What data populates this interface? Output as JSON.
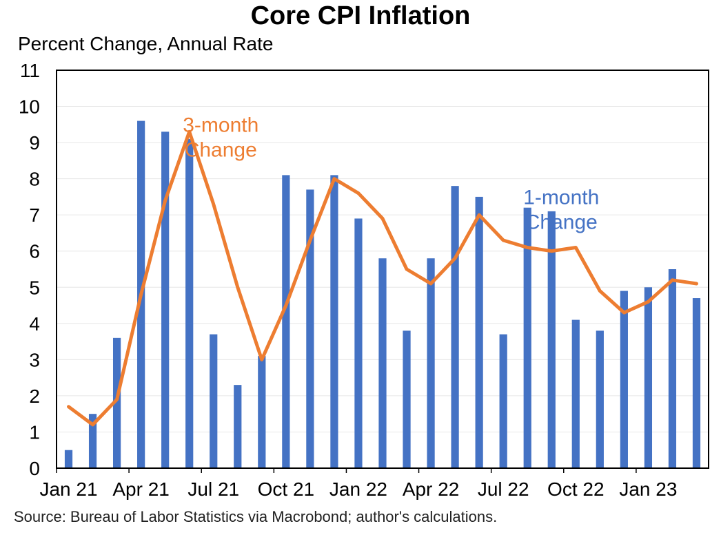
{
  "chart_data": {
    "type": "bar",
    "title": "Core CPI Inflation",
    "ylabel": "Percent Change, Annual Rate",
    "ylim": [
      0,
      11
    ],
    "yticks": [
      0,
      1,
      2,
      3,
      4,
      5,
      6,
      7,
      8,
      9,
      10,
      11
    ],
    "grid": true,
    "categories": [
      "Jan 21",
      "Feb 21",
      "Mar 21",
      "Apr 21",
      "May 21",
      "Jun 21",
      "Jul 21",
      "Aug 21",
      "Sep 21",
      "Oct 21",
      "Nov 21",
      "Dec 21",
      "Jan 22",
      "Feb 22",
      "Mar 22",
      "Apr 22",
      "May 22",
      "Jun 22",
      "Jul 22",
      "Aug 22",
      "Sep 22",
      "Oct 22",
      "Nov 22",
      "Dec 22",
      "Jan 23",
      "Feb 23",
      "Mar 23"
    ],
    "xtick_labels": [
      "Jan 21",
      "Apr 21",
      "Jul 21",
      "Oct 21",
      "Jan 22",
      "Apr 22",
      "Jul 22",
      "Oct 22",
      "Jan 23"
    ],
    "series": [
      {
        "name": "1-month Change",
        "kind": "bar",
        "color": "#4472C4",
        "values": [
          0.5,
          1.5,
          3.6,
          9.6,
          9.3,
          9.1,
          3.7,
          2.3,
          3.1,
          8.1,
          7.7,
          8.1,
          6.9,
          5.8,
          3.8,
          5.8,
          7.8,
          7.5,
          3.7,
          7.2,
          7.1,
          4.1,
          3.8,
          4.9,
          5.0,
          5.5,
          4.7
        ]
      },
      {
        "name": "3-month Change",
        "kind": "line",
        "color": "#ED7D31",
        "values": [
          1.7,
          1.2,
          1.9,
          4.8,
          7.4,
          9.3,
          7.3,
          5.0,
          3.0,
          4.5,
          6.3,
          8.0,
          7.6,
          6.9,
          5.5,
          5.1,
          5.8,
          7.0,
          6.3,
          6.1,
          6.0,
          6.1,
          4.9,
          4.3,
          4.6,
          5.2,
          5.1
        ]
      }
    ],
    "annotations": [
      {
        "lines": [
          "3-month",
          "Change"
        ],
        "color": "#ED7D31",
        "anchor_index": 6.3,
        "anchor_value": 9.3
      },
      {
        "lines": [
          "1-month",
          "Change"
        ],
        "color": "#4472C4",
        "anchor_index": 20.4,
        "anchor_value": 7.3
      }
    ],
    "source": "Source: Bureau of Labor Statistics via Macrobond; author's calculations."
  }
}
